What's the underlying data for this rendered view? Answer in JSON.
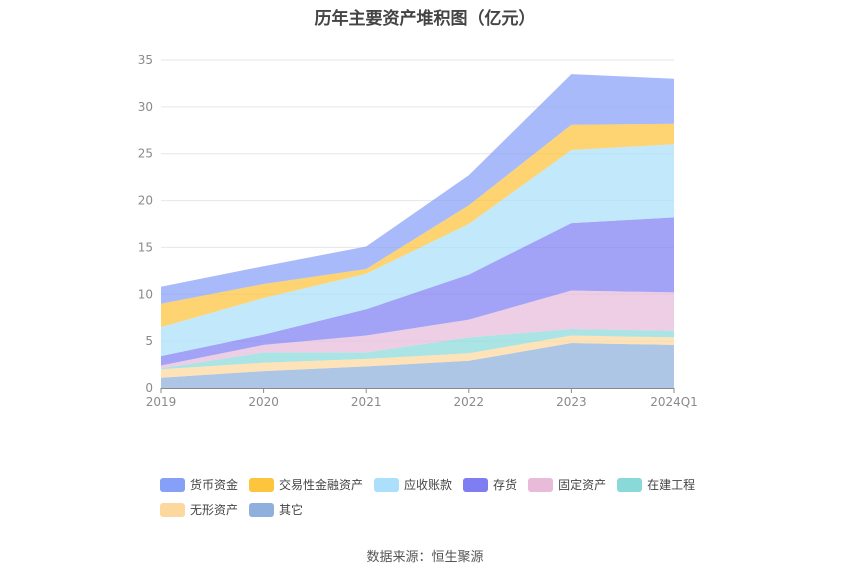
{
  "title": "历年主要资产堆积图（亿元）",
  "source": "数据来源：恒生聚源",
  "chart_data": {
    "type": "area",
    "stacked": true,
    "title": "历年主要资产堆积图（亿元）",
    "categories": [
      "2019",
      "2020",
      "2021",
      "2022",
      "2023",
      "2024Q1"
    ],
    "y_ticks": [
      "0",
      "5",
      "10",
      "15",
      "20",
      "25",
      "30",
      "35"
    ],
    "ylim": [
      0,
      35
    ],
    "grid": true,
    "legend_position": "bottom",
    "series": [
      {
        "name": "其它",
        "color": "#8fb0dc",
        "values": [
          1.1,
          1.8,
          2.3,
          2.9,
          4.8,
          4.6
        ]
      },
      {
        "name": "无形资产",
        "color": "#fdd89e",
        "values": [
          0.9,
          0.9,
          0.8,
          0.8,
          0.8,
          0.8
        ]
      },
      {
        "name": "在建工程",
        "color": "#8ad9d9",
        "values": [
          0.1,
          1.1,
          0.7,
          1.7,
          0.7,
          0.7
        ]
      },
      {
        "name": "固定资产",
        "color": "#e8bbd9",
        "values": [
          0.3,
          0.8,
          1.8,
          1.9,
          4.1,
          4.1
        ]
      },
      {
        "name": "存货",
        "color": "#7e7ef2",
        "values": [
          1.0,
          1.1,
          2.8,
          4.8,
          7.2,
          8.0
        ]
      },
      {
        "name": "应收账款",
        "color": "#abdffb",
        "values": [
          3.1,
          3.9,
          3.8,
          5.4,
          7.8,
          7.8
        ]
      },
      {
        "name": "交易性金融资产",
        "color": "#fdc43d",
        "values": [
          2.5,
          1.5,
          0.5,
          2.0,
          2.7,
          2.2
        ]
      },
      {
        "name": "货币资金",
        "color": "#86a0f7",
        "values": [
          1.8,
          1.9,
          2.4,
          3.2,
          5.4,
          4.8
        ]
      }
    ],
    "legend_order": [
      "货币资金",
      "交易性金融资产",
      "应收账款",
      "存货",
      "固定资产",
      "在建工程",
      "无形资产",
      "其它"
    ]
  }
}
